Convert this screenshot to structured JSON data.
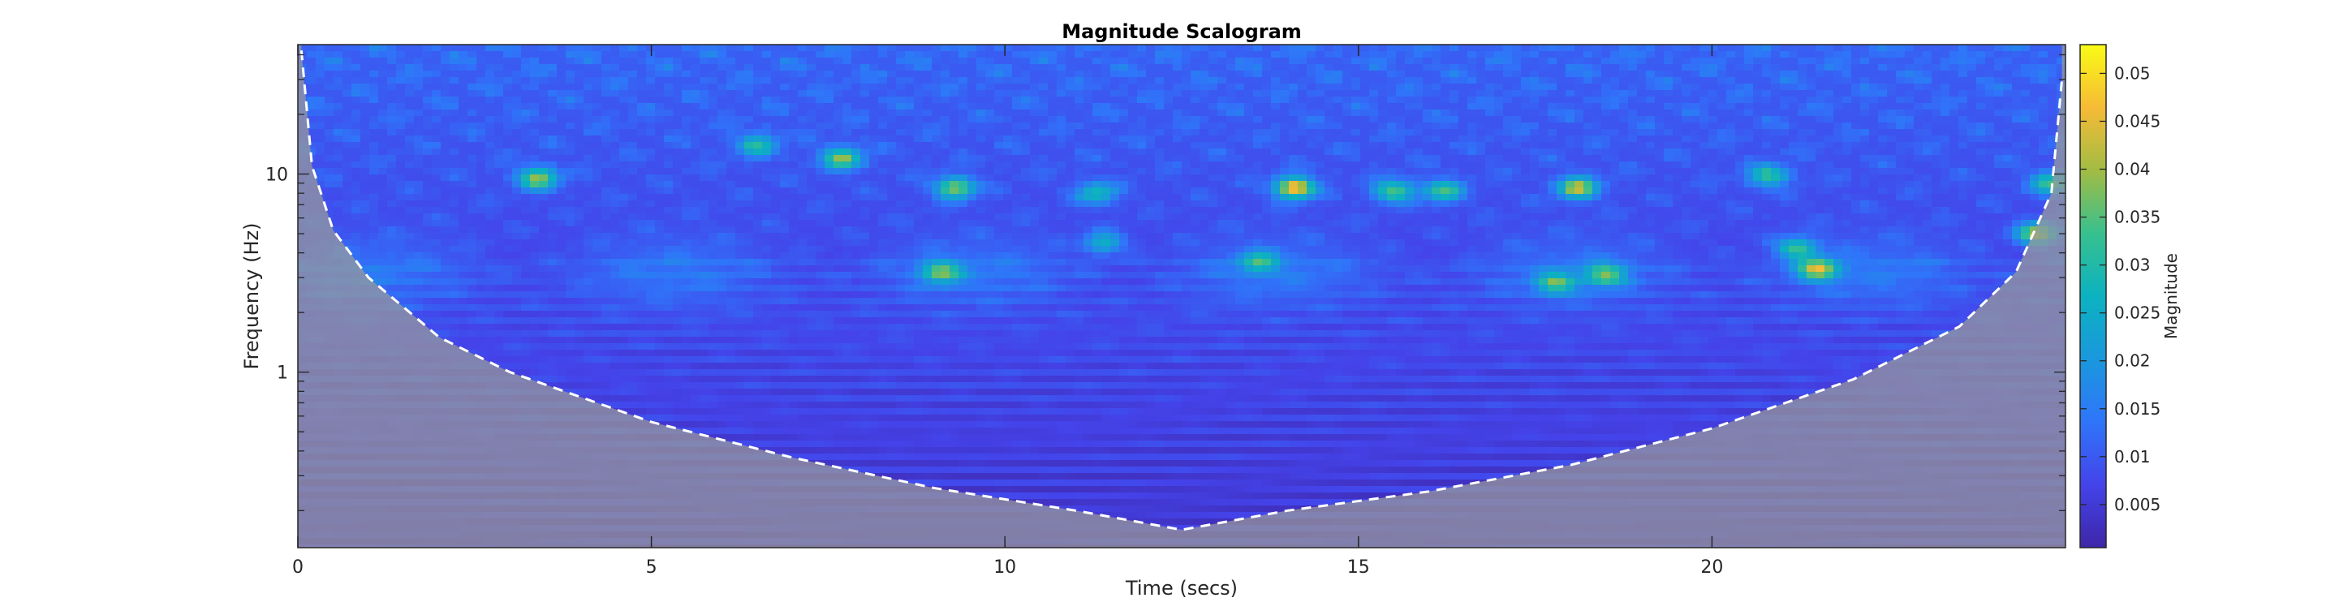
{
  "chart_data": {
    "type": "heatmap",
    "title": "Magnitude Scalogram",
    "xlabel": "Time (secs)",
    "ylabel": "Frequency (Hz)",
    "xlim": [
      0,
      25
    ],
    "ylim": [
      0.13,
      45
    ],
    "y_scale": "log",
    "x_ticks": [
      0,
      5,
      10,
      15,
      20
    ],
    "x_tick_labels": [
      "0",
      "5",
      "10",
      "15",
      "20"
    ],
    "y_ticks": [
      1,
      10
    ],
    "y_tick_labels": [
      "1",
      "10"
    ],
    "colormap": "parula",
    "colorbar": {
      "label": "Magnitude",
      "range": [
        0.0005,
        0.053
      ],
      "ticks": [
        0.005,
        0.01,
        0.015,
        0.02,
        0.025,
        0.03,
        0.035,
        0.04,
        0.045,
        0.05
      ],
      "tick_labels": [
        "0.005",
        "0.01",
        "0.015",
        "0.02",
        "0.025",
        "0.03",
        "0.035",
        "0.04",
        "0.045",
        "0.05"
      ]
    },
    "cone_of_influence": {
      "style": "dashed white",
      "shaded_outside": true,
      "points": [
        [
          0.05,
          42
        ],
        [
          0.2,
          11
        ],
        [
          0.5,
          5.2
        ],
        [
          1.0,
          3.0
        ],
        [
          2.0,
          1.5
        ],
        [
          3.0,
          1.0
        ],
        [
          5.0,
          0.56
        ],
        [
          7.0,
          0.37
        ],
        [
          9.0,
          0.26
        ],
        [
          11.0,
          0.2
        ],
        [
          12.5,
          0.16
        ],
        [
          14.0,
          0.2
        ],
        [
          16.0,
          0.25
        ],
        [
          18.0,
          0.34
        ],
        [
          20.0,
          0.52
        ],
        [
          22.0,
          0.92
        ],
        [
          23.5,
          1.7
        ],
        [
          24.3,
          3.2
        ],
        [
          24.8,
          8.0
        ],
        [
          24.95,
          30
        ]
      ]
    },
    "hotspots": [
      {
        "t": 3.4,
        "f": 9.5,
        "magnitude": 0.042
      },
      {
        "t": 6.5,
        "f": 14,
        "magnitude": 0.032
      },
      {
        "t": 7.7,
        "f": 12,
        "magnitude": 0.04
      },
      {
        "t": 9.1,
        "f": 3.2,
        "magnitude": 0.038
      },
      {
        "t": 9.3,
        "f": 8.5,
        "magnitude": 0.042
      },
      {
        "t": 11.4,
        "f": 4.5,
        "magnitude": 0.03
      },
      {
        "t": 11.3,
        "f": 8.0,
        "magnitude": 0.032
      },
      {
        "t": 13.6,
        "f": 3.6,
        "magnitude": 0.032
      },
      {
        "t": 14.1,
        "f": 8.5,
        "magnitude": 0.052
      },
      {
        "t": 15.5,
        "f": 8.2,
        "magnitude": 0.038
      },
      {
        "t": 16.2,
        "f": 8.2,
        "magnitude": 0.036
      },
      {
        "t": 17.8,
        "f": 2.8,
        "magnitude": 0.036
      },
      {
        "t": 18.1,
        "f": 8.5,
        "magnitude": 0.045
      },
      {
        "t": 18.5,
        "f": 3.1,
        "magnitude": 0.038
      },
      {
        "t": 21.5,
        "f": 3.3,
        "magnitude": 0.046
      },
      {
        "t": 21.2,
        "f": 4.2,
        "magnitude": 0.036
      },
      {
        "t": 20.8,
        "f": 9.8,
        "magnitude": 0.035
      },
      {
        "t": 24.6,
        "f": 5.0,
        "magnitude": 0.045
      },
      {
        "t": 24.8,
        "f": 9.0,
        "magnitude": 0.036
      }
    ]
  }
}
